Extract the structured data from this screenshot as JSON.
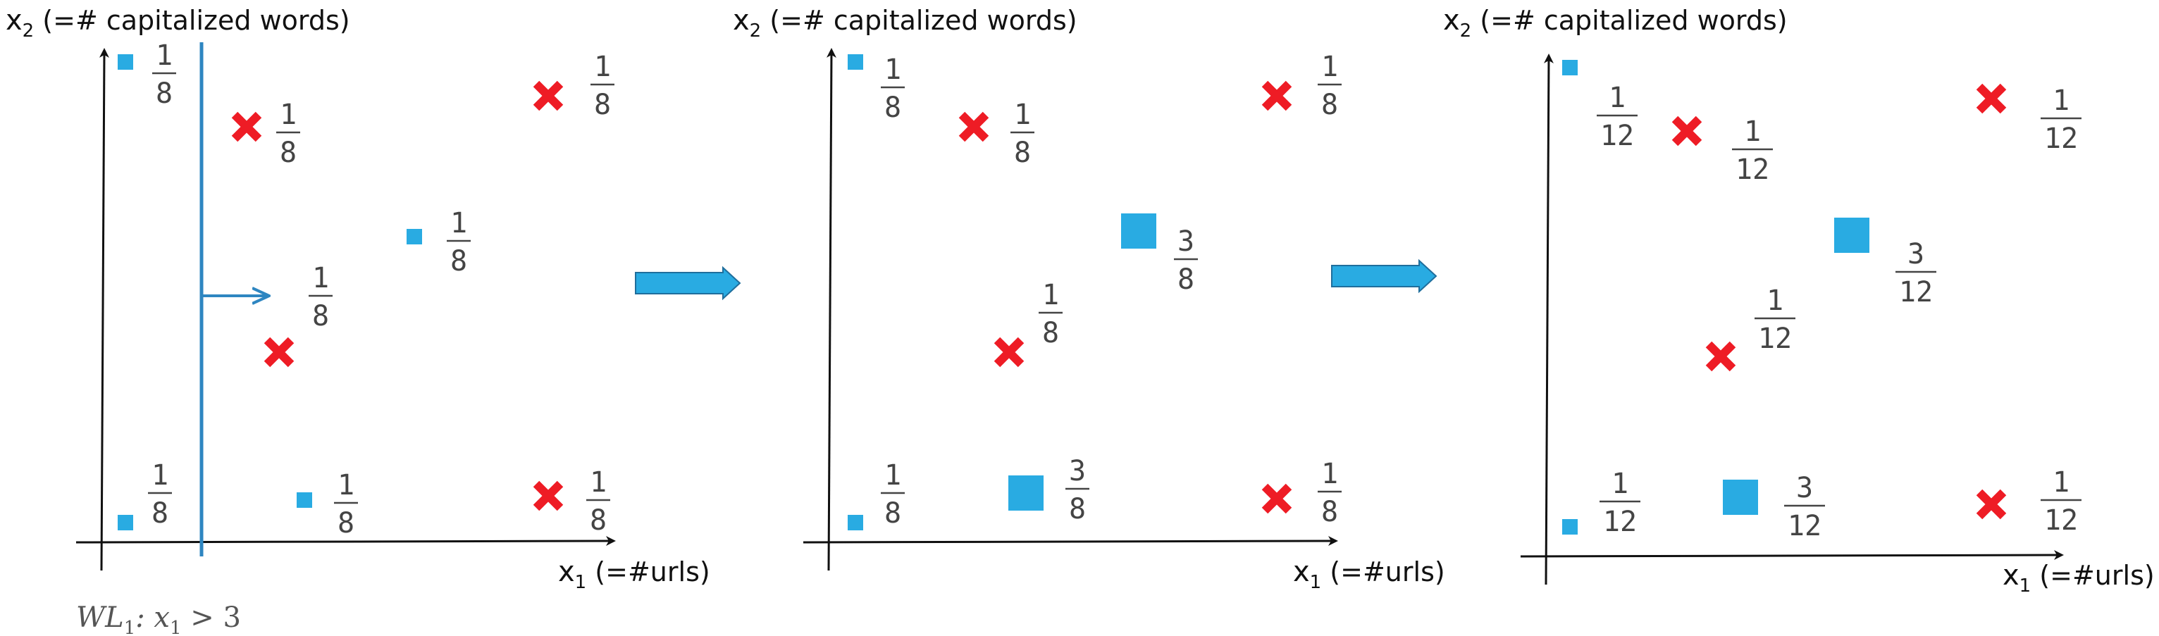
{
  "colors": {
    "positive": "#29ABE2",
    "negative": "#EE1C25",
    "axis": "#111111",
    "arrow": "#2E86C1",
    "text": "#111111",
    "fraction": "#444444"
  },
  "axis_labels": {
    "y_var": "x",
    "y_sub": "2",
    "y_rest": " (=# capitalized words)",
    "x_var": "x",
    "x_sub": "1",
    "x_rest": " (=#urls)"
  },
  "weak_learner": {
    "name": "WL",
    "sub": "1",
    "rule": ": x",
    "rule_sub": "1",
    "cond": " > 3"
  },
  "panels": [
    {
      "name": "panel-1",
      "points": [
        {
          "class": "positive",
          "size": "small",
          "num": "1",
          "den": "8"
        },
        {
          "class": "negative",
          "size": "normal",
          "num": "1",
          "den": "8"
        },
        {
          "class": "negative",
          "size": "normal",
          "num": "1",
          "den": "8"
        },
        {
          "class": "positive",
          "size": "small",
          "num": "1",
          "den": "8"
        },
        {
          "class": "negative",
          "size": "normal",
          "num": "1",
          "den": "8"
        },
        {
          "class": "positive",
          "size": "small",
          "num": "1",
          "den": "8"
        },
        {
          "class": "positive",
          "size": "small",
          "num": "1",
          "den": "8"
        },
        {
          "class": "negative",
          "size": "normal",
          "num": "1",
          "den": "8"
        }
      ]
    },
    {
      "name": "panel-2",
      "points": [
        {
          "class": "positive",
          "size": "small",
          "num": "1",
          "den": "8"
        },
        {
          "class": "negative",
          "size": "normal",
          "num": "1",
          "den": "8"
        },
        {
          "class": "negative",
          "size": "normal",
          "num": "1",
          "den": "8"
        },
        {
          "class": "positive",
          "size": "large",
          "num": "3",
          "den": "8"
        },
        {
          "class": "negative",
          "size": "normal",
          "num": "1",
          "den": "8"
        },
        {
          "class": "positive",
          "size": "small",
          "num": "1",
          "den": "8"
        },
        {
          "class": "positive",
          "size": "large",
          "num": "3",
          "den": "8"
        },
        {
          "class": "negative",
          "size": "normal",
          "num": "1",
          "den": "8"
        }
      ]
    },
    {
      "name": "panel-3",
      "points": [
        {
          "class": "positive",
          "size": "small",
          "num": "1",
          "den": "12"
        },
        {
          "class": "negative",
          "size": "normal",
          "num": "1",
          "den": "12"
        },
        {
          "class": "negative",
          "size": "normal",
          "num": "1",
          "den": "12"
        },
        {
          "class": "positive",
          "size": "large",
          "num": "3",
          "den": "12"
        },
        {
          "class": "negative",
          "size": "normal",
          "num": "1",
          "den": "12"
        },
        {
          "class": "positive",
          "size": "small",
          "num": "1",
          "den": "12"
        },
        {
          "class": "positive",
          "size": "large",
          "num": "3",
          "den": "12"
        },
        {
          "class": "negative",
          "size": "normal",
          "num": "1",
          "den": "12"
        }
      ]
    }
  ]
}
